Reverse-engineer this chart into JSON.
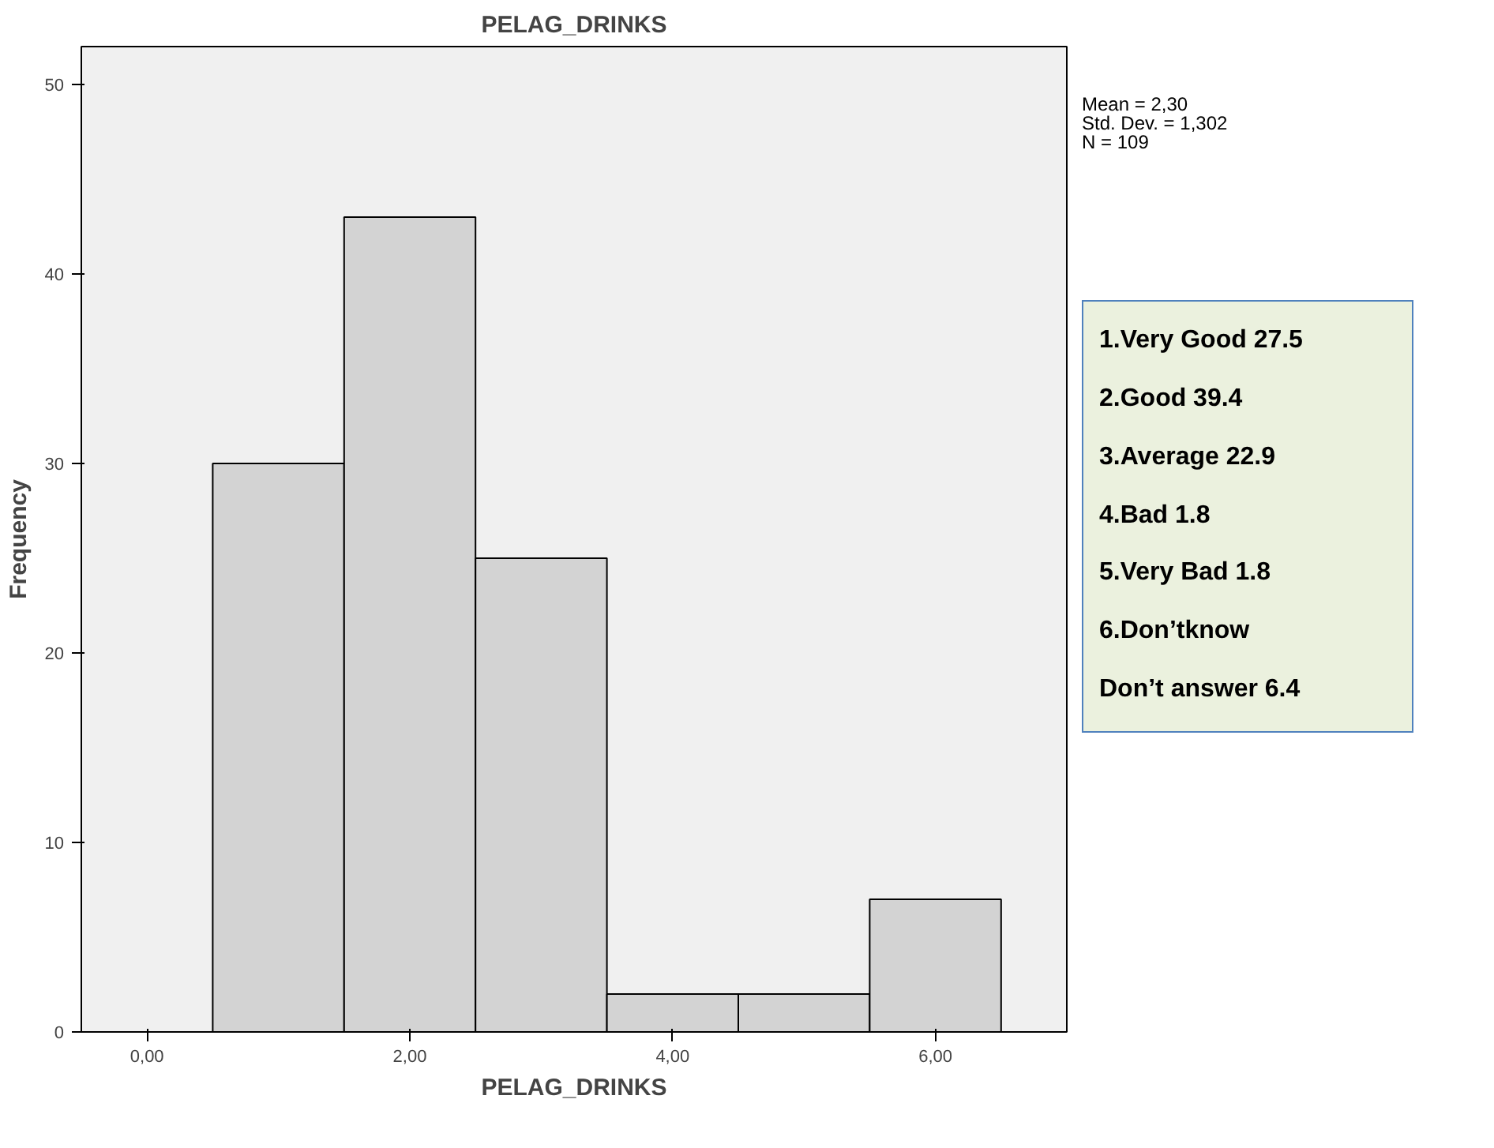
{
  "chart_data": {
    "type": "histogram",
    "title": "PELAG_DRINKS",
    "xlabel": "PELAG_DRINKS",
    "ylabel": "Frequency",
    "bins": [
      0.5,
      1.5,
      2.5,
      3.5,
      4.5,
      5.5,
      6.5
    ],
    "values": [
      30,
      43,
      25,
      2,
      2,
      7
    ],
    "color": "#d3d3d3",
    "xlim": [
      -0.5,
      7.0
    ],
    "xticks": [
      {
        "value": 0,
        "label": "0,00"
      },
      {
        "value": 2,
        "label": "2,00"
      },
      {
        "value": 4,
        "label": "4,00"
      },
      {
        "value": 6,
        "label": "6,00"
      }
    ],
    "ylim": [
      0,
      52
    ],
    "yticks": [
      0,
      10,
      20,
      30,
      40,
      50
    ],
    "grid": false,
    "annotations": [
      "Mean = 2,30",
      "Std. Dev. = 1,302",
      "N = 109",
      "1.Very Good 27.5",
      "2.Good 39.4",
      "3.Average 22.9",
      "4.Bad 1.8",
      "5.Very Bad 1.8",
      "6.Don’tknow",
      "Don’t answer 6.4"
    ]
  }
}
